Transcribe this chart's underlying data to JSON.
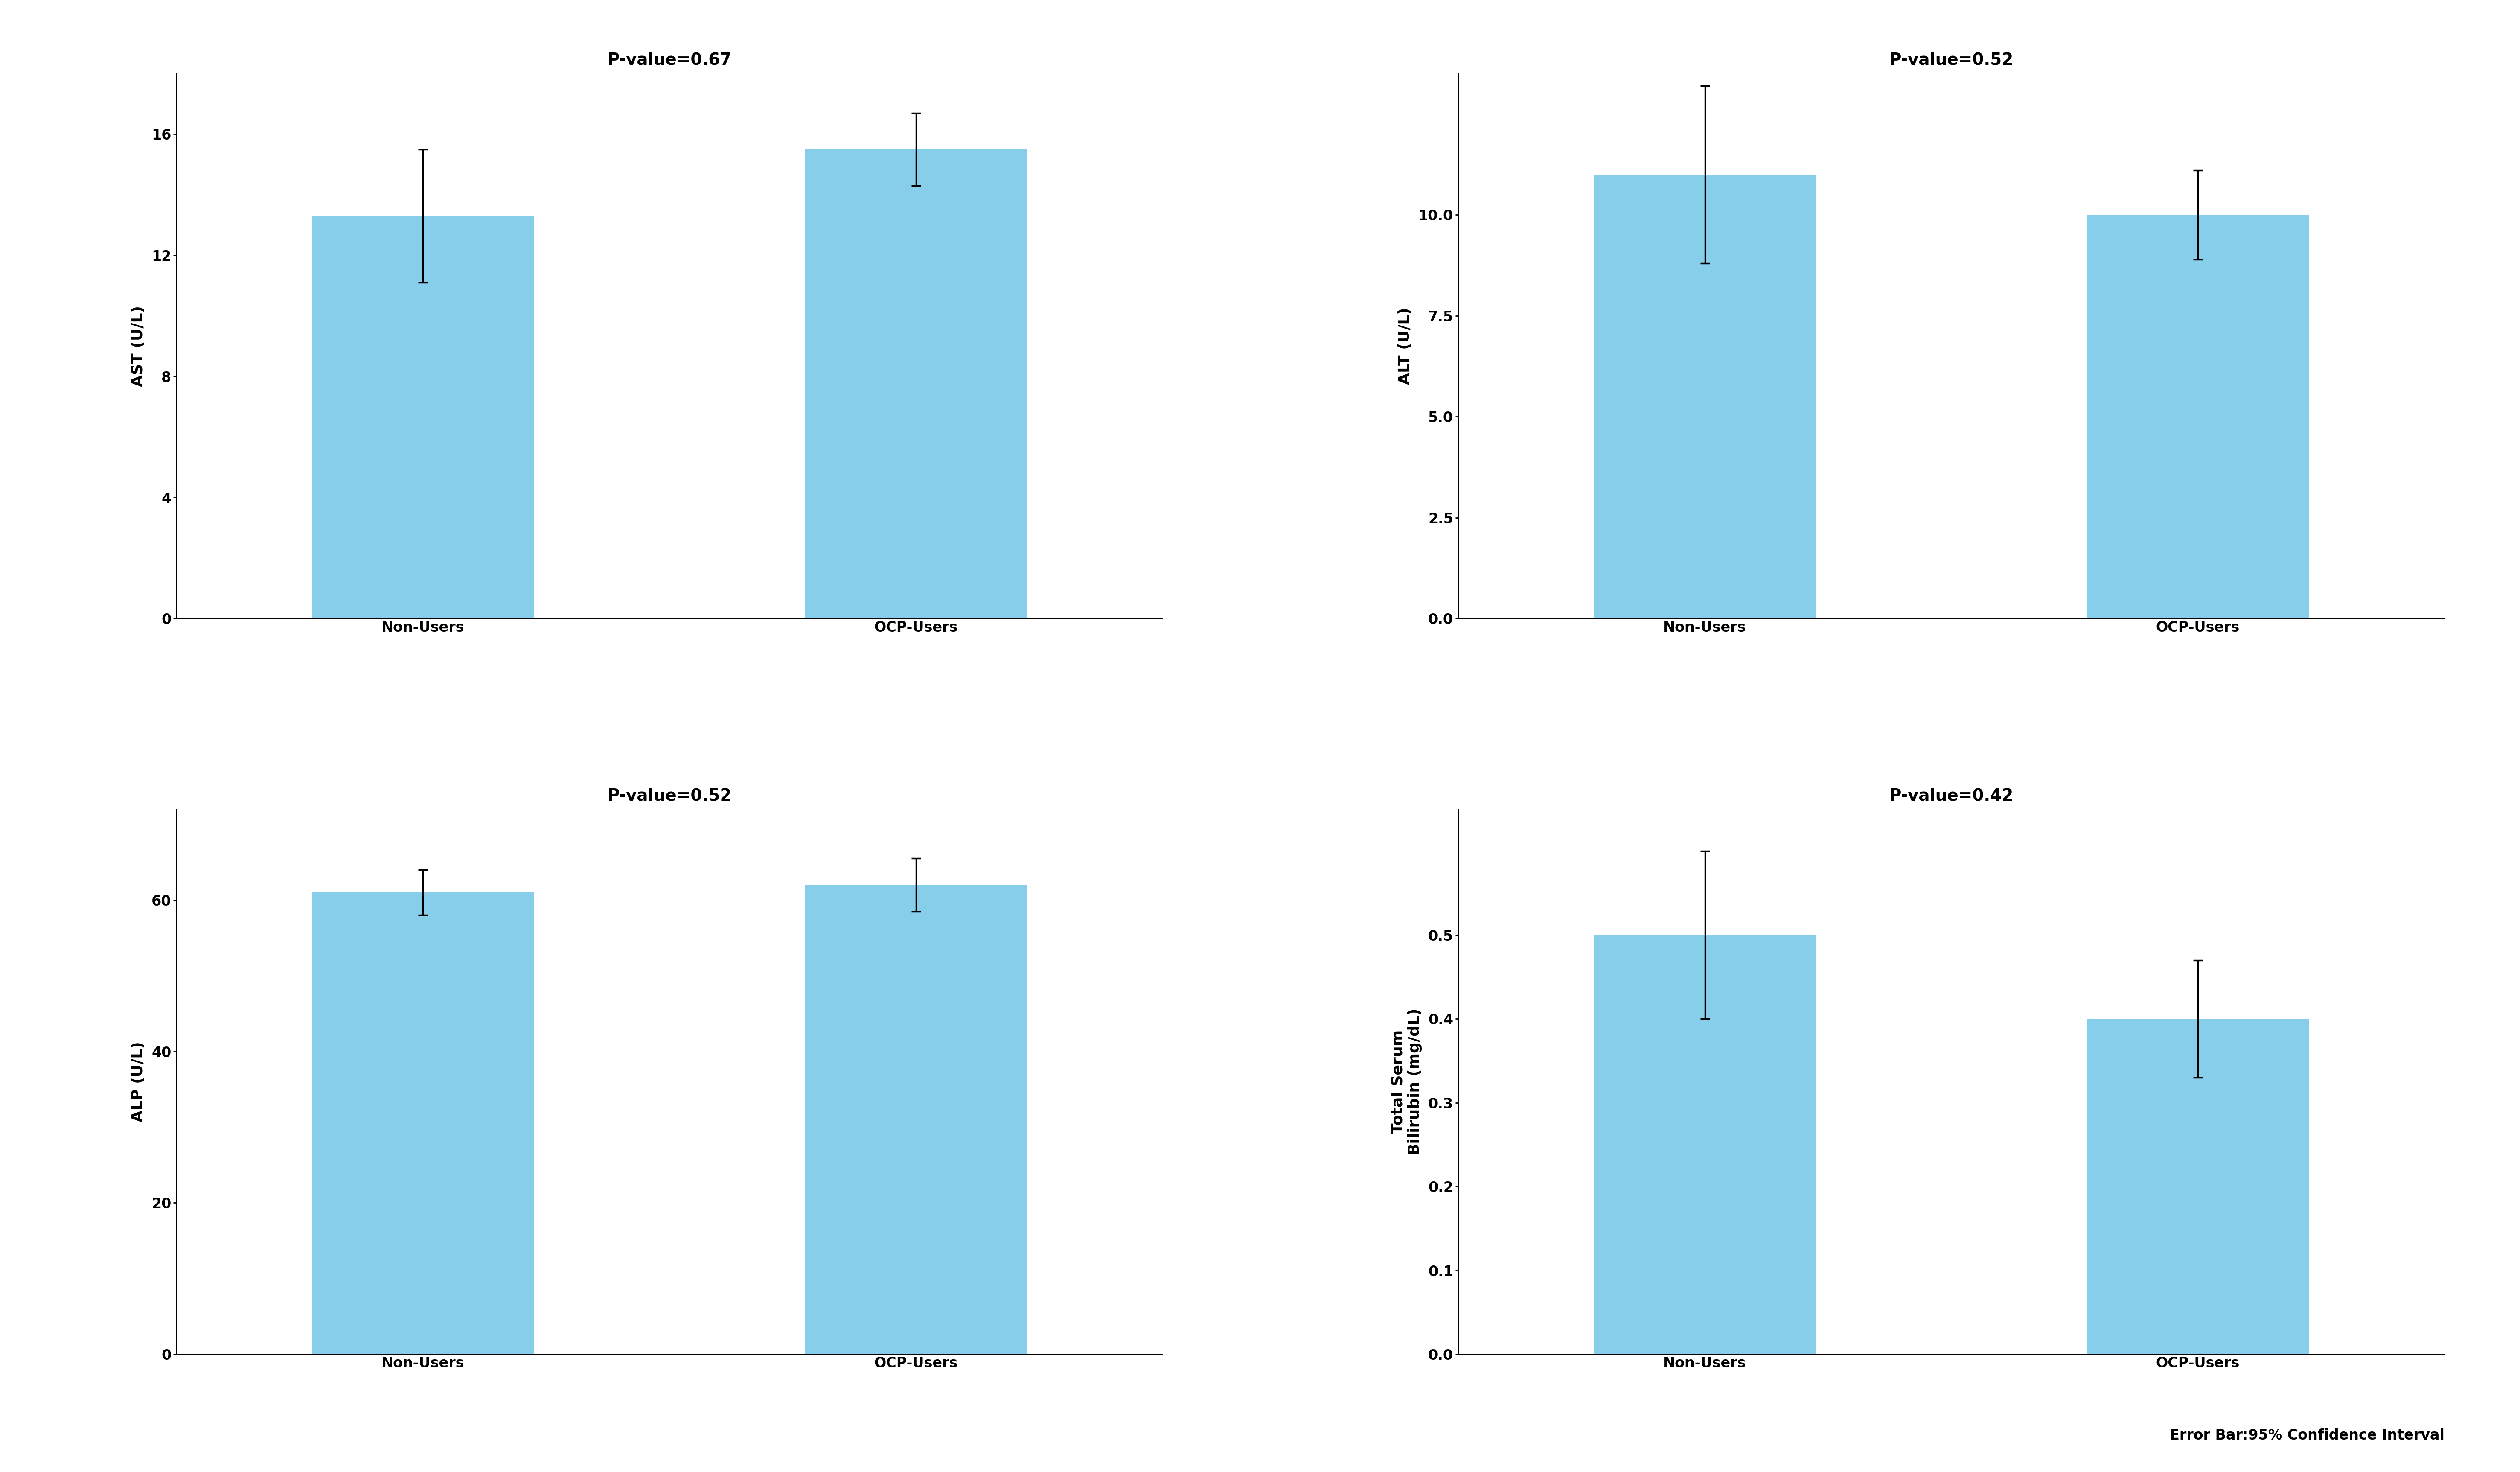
{
  "subplots": [
    {
      "title": "P-value=0.67",
      "ylabel": "AST (U/L)",
      "categories": [
        "Non-Users",
        "OCP-Users"
      ],
      "values": [
        13.3,
        15.5
      ],
      "errors": [
        2.2,
        1.2
      ],
      "ylim": [
        0,
        18
      ],
      "yticks": [
        0,
        4,
        8,
        12,
        16
      ],
      "bar_color": "#87CEEB"
    },
    {
      "title": "P-value=0.52",
      "ylabel": "ALT (U/L)",
      "categories": [
        "Non-Users",
        "OCP-Users"
      ],
      "values": [
        11.0,
        10.0
      ],
      "errors": [
        2.2,
        1.1
      ],
      "ylim": [
        0,
        13.5
      ],
      "yticks": [
        0.0,
        2.5,
        5.0,
        7.5,
        10.0
      ],
      "bar_color": "#87CEEB"
    },
    {
      "title": "P-value=0.52",
      "ylabel": "ALP (U/L)",
      "categories": [
        "Non-Users",
        "OCP-Users"
      ],
      "values": [
        61.0,
        62.0
      ],
      "errors": [
        3.0,
        3.5
      ],
      "ylim": [
        0,
        72
      ],
      "yticks": [
        0,
        20,
        40,
        60
      ],
      "bar_color": "#87CEEB"
    },
    {
      "title": "P-value=0.42",
      "ylabel": "Total Serum\nBilirubin (mg/dL)",
      "categories": [
        "Non-Users",
        "OCP-Users"
      ],
      "values": [
        0.5,
        0.4
      ],
      "errors": [
        0.1,
        0.07
      ],
      "ylim": [
        0,
        0.65
      ],
      "yticks": [
        0.0,
        0.1,
        0.2,
        0.3,
        0.4,
        0.5
      ],
      "bar_color": "#87CEEB"
    }
  ],
  "bar_width": 0.45,
  "background_color": "#ffffff",
  "text_color": "#000000",
  "title_fontsize": 28,
  "label_fontsize": 26,
  "tick_fontsize": 24,
  "errorbar_capsize": 8,
  "errorbar_linewidth": 2.5,
  "errorbar_capthick": 2.5,
  "footnote": "Error Bar:95% Confidence Interval"
}
